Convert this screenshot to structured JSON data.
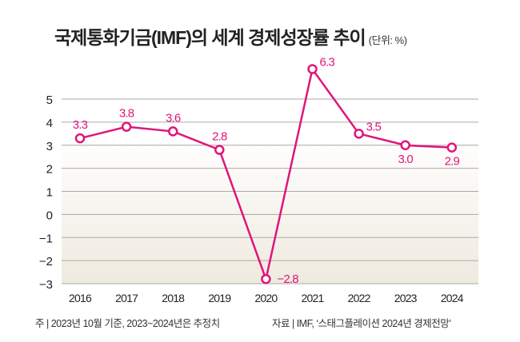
{
  "title": "국제통화기금(IMF)의 세계 경제성장률 추이",
  "unit_label": "(단위: %)",
  "note": "주 | 2023년 10월 기준, 2023~2024년은 추정치",
  "source": "자료 | IMF, ‘스태그플레이션 2024년 경제전망’",
  "colors": {
    "line": "#e0157a",
    "grid": "#aaaaaa",
    "background_bottom": "#efeadf"
  },
  "chart_data": {
    "type": "line",
    "title": "국제통화기금(IMF)의 세계 경제성장률 추이",
    "x": [
      "2016",
      "2017",
      "2018",
      "2019",
      "2020",
      "2021",
      "2022",
      "2023",
      "2024"
    ],
    "series": [
      {
        "values": [
          3.3,
          3.8,
          3.6,
          2.8,
          -2.8,
          6.3,
          3.5,
          3.0,
          2.9
        ]
      }
    ],
    "data_labels": [
      "3.3",
      "3.8",
      "3.6",
      "2.8",
      "−2.8",
      "6.3",
      "3.5",
      "3.0",
      "2.9"
    ],
    "yticks": [
      "5",
      "4",
      "3",
      "2",
      "1",
      "0",
      "−1",
      "−2",
      "−3"
    ],
    "ytick_values": [
      5,
      4,
      3,
      2,
      1,
      0,
      -1,
      -2,
      -3
    ],
    "ylim": [
      -3,
      5
    ],
    "grid": true
  }
}
